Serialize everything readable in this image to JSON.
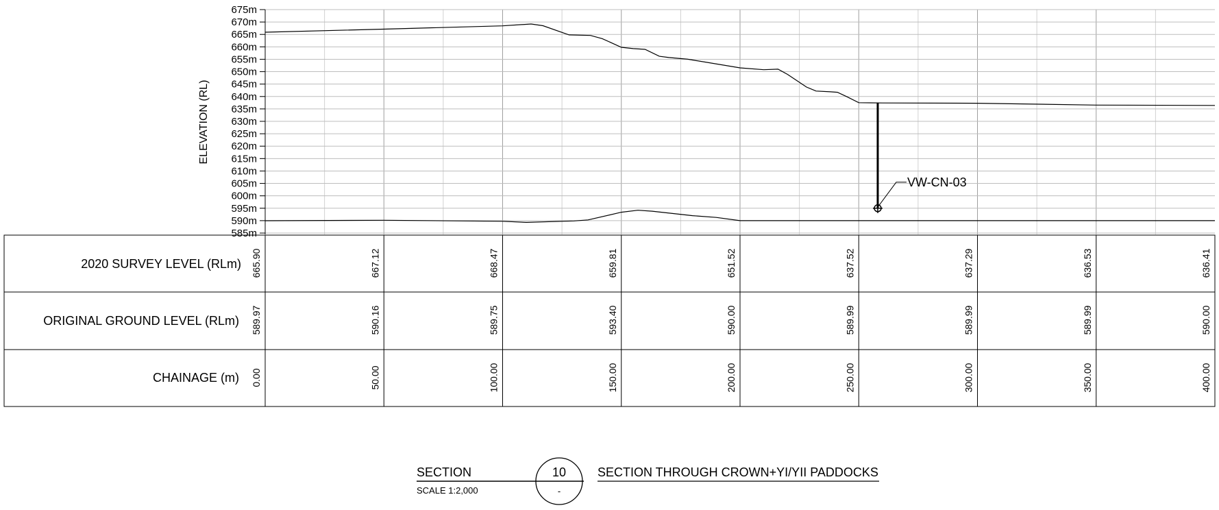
{
  "chart_data": {
    "type": "line",
    "ylabel": "ELEVATION (RL)",
    "ylim": [
      585,
      675
    ],
    "xlim": [
      0,
      400
    ],
    "y_tick_step": 5,
    "y_tick_suffix": "m",
    "grid": true,
    "series": [
      {
        "key": "survey",
        "x": [
          0,
          50,
          100,
          112,
          117,
          128,
          137,
          142,
          150,
          155,
          160,
          166,
          170,
          178,
          200,
          210,
          216,
          220,
          228,
          232,
          238,
          241,
          245,
          250,
          260,
          300,
          350,
          400
        ],
        "values": [
          665.9,
          667.12,
          668.47,
          669.2,
          668.5,
          664.8,
          664.6,
          663.3,
          659.81,
          659.3,
          659.0,
          656.2,
          655.7,
          655.0,
          651.52,
          650.8,
          651.0,
          648.9,
          643.8,
          642.2,
          641.9,
          641.7,
          639.9,
          637.52,
          637.4,
          637.29,
          636.53,
          636.41
        ]
      },
      {
        "key": "original",
        "x": [
          0,
          50,
          100,
          110,
          130,
          136,
          150,
          157,
          163,
          180,
          190,
          200,
          250,
          300,
          350,
          400
        ],
        "values": [
          589.97,
          590.16,
          589.75,
          589.3,
          589.9,
          590.3,
          593.4,
          594.2,
          593.8,
          592.0,
          591.3,
          590.0,
          589.99,
          589.99,
          589.99,
          590.0
        ]
      }
    ],
    "borehole": {
      "label": "VW-CN-03",
      "x": 258,
      "top_y": 637.45,
      "bottom_y": 595.0
    }
  },
  "table": {
    "chainages": [
      0,
      50,
      100,
      150,
      200,
      250,
      300,
      350,
      400
    ],
    "rows": [
      {
        "label": "2020 SURVEY LEVEL (RLm)",
        "values": [
          "665.90",
          "667.12",
          "668.47",
          "659.81",
          "651.52",
          "637.52",
          "637.29",
          "636.53",
          "636.41"
        ]
      },
      {
        "label": "ORIGINAL GROUND LEVEL (RLm)",
        "values": [
          "589.97",
          "590.16",
          "589.75",
          "593.40",
          "590.00",
          "589.99",
          "589.99",
          "589.99",
          "590.00"
        ]
      },
      {
        "label": "CHAINAGE (m)",
        "values": [
          "0.00",
          "50.00",
          "100.00",
          "150.00",
          "200.00",
          "250.00",
          "300.00",
          "350.00",
          "400.00"
        ]
      }
    ]
  },
  "title_block": {
    "section_label": "SECTION",
    "scale_text": "SCALE 1:2,000",
    "section_number": "10",
    "sheet_ref": "-",
    "title": "SECTION THROUGH CROWN+YI/YII PADDOCKS"
  }
}
